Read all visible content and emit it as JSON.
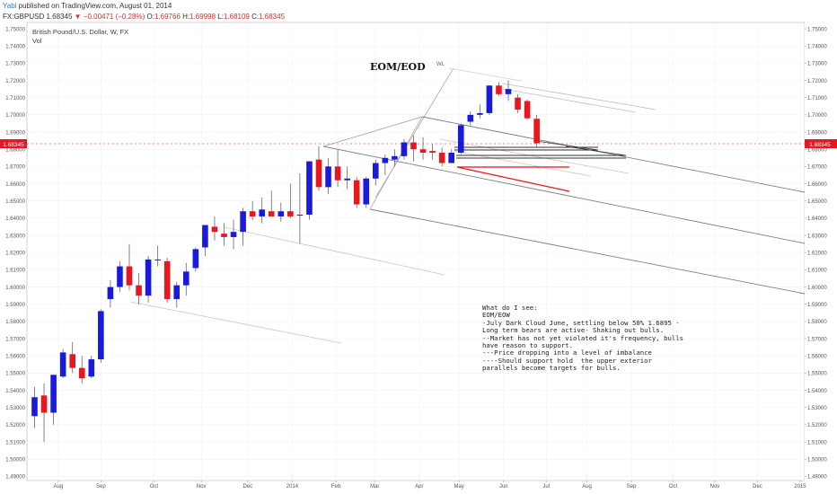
{
  "header": {
    "author": "Yabi",
    "published_text": "published on TradingView.com, August 01, 2014",
    "symbol": "FX:GBPUSD",
    "last": "1.68345",
    "change_arrow": "▼",
    "change": "−0.00471 (−0.28%)",
    "o_label": "O:",
    "o_value": "1.69766",
    "h_label": "H:",
    "h_value": "1.69998",
    "l_label": "L:",
    "l_value": "1.68109",
    "c_label": "C:",
    "c_value": "1.68345"
  },
  "pane": {
    "series_title": "British Pound/U.S. Dollar, W, FX",
    "volume_label": "Vol",
    "annotation_title": "EOM/EOD",
    "wl_label": "WL",
    "price_tag": "1.68345"
  },
  "note": {
    "lines": [
      "What do I see:",
      "EOM/EOW",
      "-July Dark Cloud June, settling below 50% 1.6895 -",
      "Long term bears are active- Shaking out bulls.",
      "--Market has not yet violated it's frequency, bulls",
      "have reason to support.",
      "---Price dropping into a level of imbalance",
      "----Should support hold  the upper exterior",
      "parallels become targets for bulls."
    ]
  },
  "colors": {
    "up": "#1a1adb",
    "down": "#e8171d",
    "wick": "#666666",
    "price_tag_bg": "#e8171d",
    "author": "#2a7ad1"
  },
  "chart_data": {
    "type": "candlestick",
    "title": "British Pound/U.S. Dollar, W, FX",
    "symbol": "FX:GBPUSD",
    "timeframe": "W",
    "ylim": [
      1.49,
      1.75
    ],
    "y_ticks": [
      "1.75000",
      "1.74000",
      "1.73000",
      "1.72000",
      "1.71000",
      "1.70000",
      "1.69000",
      "1.68000",
      "1.67000",
      "1.66000",
      "1.65000",
      "1.64000",
      "1.63000",
      "1.62000",
      "1.61000",
      "1.60000",
      "1.59000",
      "1.58000",
      "1.57000",
      "1.56000",
      "1.55000",
      "1.54000",
      "1.53000",
      "1.52000",
      "1.51000",
      "1.50000",
      "1.49000"
    ],
    "x_ticks": [
      {
        "label": "Aug",
        "bar": 2.5
      },
      {
        "label": "Sep",
        "bar": 7
      },
      {
        "label": "Oct",
        "bar": 12.6
      },
      {
        "label": "Nov",
        "bar": 17.6
      },
      {
        "label": "Dec",
        "bar": 22.5
      },
      {
        "label": "2014",
        "bar": 27.2
      },
      {
        "label": "Feb",
        "bar": 31.8
      },
      {
        "label": "Mar",
        "bar": 35.9
      },
      {
        "label": "Apr",
        "bar": 40.6
      },
      {
        "label": "May",
        "bar": 44.8
      },
      {
        "label": "Jun",
        "bar": 49.5
      },
      {
        "label": "Jul",
        "bar": 54
      },
      {
        "label": "Aug",
        "bar": 58.3
      },
      {
        "label": "Sep",
        "bar": 63
      },
      {
        "label": "Oct",
        "bar": 67.4
      },
      {
        "label": "Nov",
        "bar": 71.8
      },
      {
        "label": "Dec",
        "bar": 76.3
      },
      {
        "label": "2015",
        "bar": 80.8
      },
      {
        "label": "Feb",
        "bar": 85.2
      }
    ],
    "candles": [
      {
        "o": 1.525,
        "h": 1.542,
        "l": 1.518,
        "c": 1.536
      },
      {
        "o": 1.537,
        "h": 1.544,
        "l": 1.51,
        "c": 1.527
      },
      {
        "o": 1.527,
        "h": 1.549,
        "l": 1.52,
        "c": 1.549
      },
      {
        "o": 1.548,
        "h": 1.564,
        "l": 1.547,
        "c": 1.562
      },
      {
        "o": 1.561,
        "h": 1.568,
        "l": 1.55,
        "c": 1.553
      },
      {
        "o": 1.553,
        "h": 1.56,
        "l": 1.544,
        "c": 1.547
      },
      {
        "o": 1.548,
        "h": 1.56,
        "l": 1.547,
        "c": 1.558
      },
      {
        "o": 1.558,
        "h": 1.587,
        "l": 1.556,
        "c": 1.586
      },
      {
        "o": 1.593,
        "h": 1.604,
        "l": 1.588,
        "c": 1.6
      },
      {
        "o": 1.6,
        "h": 1.615,
        "l": 1.597,
        "c": 1.612
      },
      {
        "o": 1.612,
        "h": 1.625,
        "l": 1.598,
        "c": 1.601
      },
      {
        "o": 1.601,
        "h": 1.608,
        "l": 1.59,
        "c": 1.595
      },
      {
        "o": 1.595,
        "h": 1.618,
        "l": 1.591,
        "c": 1.616
      },
      {
        "o": 1.616,
        "h": 1.624,
        "l": 1.612,
        "c": 1.616
      },
      {
        "o": 1.615,
        "h": 1.617,
        "l": 1.591,
        "c": 1.593
      },
      {
        "o": 1.593,
        "h": 1.603,
        "l": 1.588,
        "c": 1.601
      },
      {
        "o": 1.601,
        "h": 1.614,
        "l": 1.595,
        "c": 1.609
      },
      {
        "o": 1.611,
        "h": 1.623,
        "l": 1.609,
        "c": 1.622
      },
      {
        "o": 1.623,
        "h": 1.636,
        "l": 1.618,
        "c": 1.636
      },
      {
        "o": 1.635,
        "h": 1.641,
        "l": 1.627,
        "c": 1.632
      },
      {
        "o": 1.631,
        "h": 1.637,
        "l": 1.624,
        "c": 1.629
      },
      {
        "o": 1.629,
        "h": 1.639,
        "l": 1.622,
        "c": 1.632
      },
      {
        "o": 1.632,
        "h": 1.646,
        "l": 1.624,
        "c": 1.644
      },
      {
        "o": 1.644,
        "h": 1.65,
        "l": 1.639,
        "c": 1.641
      },
      {
        "o": 1.641,
        "h": 1.652,
        "l": 1.637,
        "c": 1.645
      },
      {
        "o": 1.644,
        "h": 1.656,
        "l": 1.641,
        "c": 1.641
      },
      {
        "o": 1.641,
        "h": 1.649,
        "l": 1.638,
        "c": 1.644
      },
      {
        "o": 1.644,
        "h": 1.66,
        "l": 1.64,
        "c": 1.641
      },
      {
        "o": 1.642,
        "h": 1.666,
        "l": 1.625,
        "c": 1.642
      },
      {
        "o": 1.642,
        "h": 1.673,
        "l": 1.639,
        "c": 1.673
      },
      {
        "o": 1.674,
        "h": 1.682,
        "l": 1.656,
        "c": 1.658
      },
      {
        "o": 1.658,
        "h": 1.675,
        "l": 1.654,
        "c": 1.67
      },
      {
        "o": 1.67,
        "h": 1.68,
        "l": 1.658,
        "c": 1.662
      },
      {
        "o": 1.662,
        "h": 1.67,
        "l": 1.657,
        "c": 1.663
      },
      {
        "o": 1.662,
        "h": 1.664,
        "l": 1.646,
        "c": 1.648
      },
      {
        "o": 1.648,
        "h": 1.664,
        "l": 1.646,
        "c": 1.663
      },
      {
        "o": 1.663,
        "h": 1.674,
        "l": 1.659,
        "c": 1.672
      },
      {
        "o": 1.672,
        "h": 1.677,
        "l": 1.665,
        "c": 1.675
      },
      {
        "o": 1.674,
        "h": 1.68,
        "l": 1.67,
        "c": 1.676
      },
      {
        "o": 1.676,
        "h": 1.686,
        "l": 1.674,
        "c": 1.684
      },
      {
        "o": 1.684,
        "h": 1.688,
        "l": 1.673,
        "c": 1.68
      },
      {
        "o": 1.68,
        "h": 1.687,
        "l": 1.674,
        "c": 1.678
      },
      {
        "o": 1.679,
        "h": 1.683,
        "l": 1.674,
        "c": 1.678
      },
      {
        "o": 1.678,
        "h": 1.681,
        "l": 1.67,
        "c": 1.672
      },
      {
        "o": 1.672,
        "h": 1.68,
        "l": 1.673,
        "c": 1.678
      },
      {
        "o": 1.678,
        "h": 1.695,
        "l": 1.677,
        "c": 1.694
      },
      {
        "o": 1.696,
        "h": 1.702,
        "l": 1.694,
        "c": 1.7
      },
      {
        "o": 1.7,
        "h": 1.706,
        "l": 1.698,
        "c": 1.701
      },
      {
        "o": 1.701,
        "h": 1.717,
        "l": 1.7,
        "c": 1.717
      },
      {
        "o": 1.717,
        "h": 1.719,
        "l": 1.711,
        "c": 1.712
      },
      {
        "o": 1.712,
        "h": 1.72,
        "l": 1.708,
        "c": 1.715
      },
      {
        "o": 1.71,
        "h": 1.712,
        "l": 1.701,
        "c": 1.703
      },
      {
        "o": 1.708,
        "h": 1.709,
        "l": 1.697,
        "c": 1.698
      },
      {
        "o": 1.6977,
        "h": 1.7,
        "l": 1.6811,
        "c": 1.6835
      }
    ]
  }
}
